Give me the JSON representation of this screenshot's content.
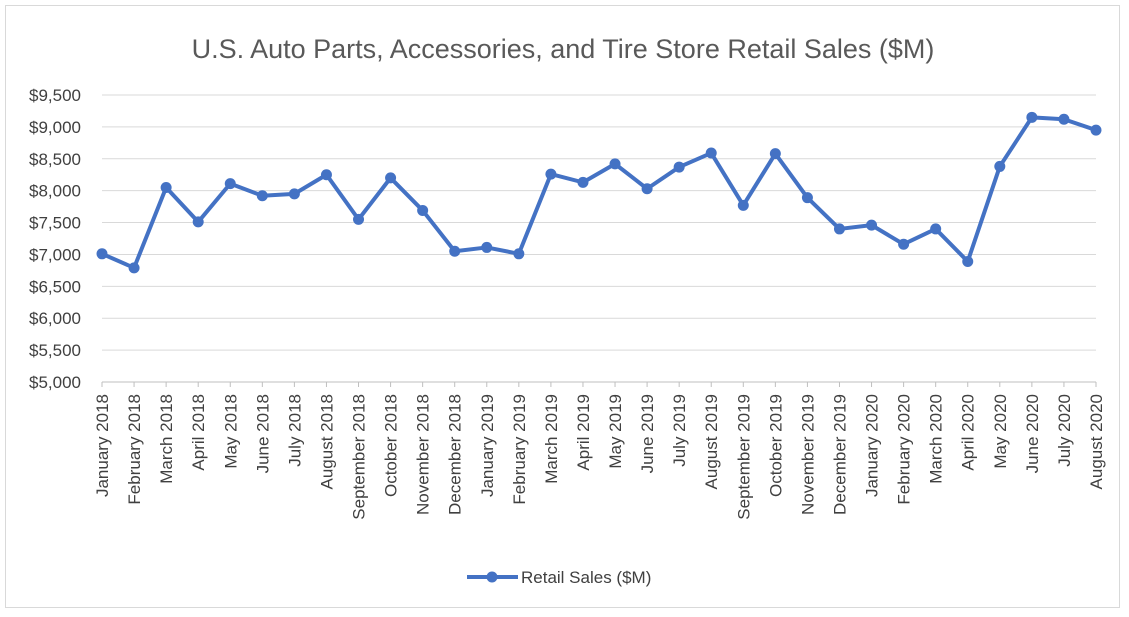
{
  "chart_data": {
    "type": "line",
    "title": "U.S. Auto Parts, Accessories, and Tire Store Retail Sales ($M)",
    "xlabel": "",
    "ylabel": "",
    "ylim": [
      5000,
      9500
    ],
    "ytick_step": 500,
    "ytick_labels": [
      "$5,000",
      "$5,500",
      "$6,000",
      "$6,500",
      "$7,000",
      "$7,500",
      "$8,000",
      "$8,500",
      "$9,000",
      "$9,500"
    ],
    "grid": true,
    "legend_position": "bottom",
    "categories": [
      "January 2018",
      "February 2018",
      "March 2018",
      "April 2018",
      "May 2018",
      "June 2018",
      "July 2018",
      "August 2018",
      "September 2018",
      "October 2018",
      "November 2018",
      "December 2018",
      "January 2019",
      "February 2019",
      "March 2019",
      "April 2019",
      "May 2019",
      "June 2019",
      "July 2019",
      "August 2019",
      "September 2019",
      "October 2019",
      "November 2019",
      "December 2019",
      "January 2020",
      "February 2020",
      "March 2020",
      "April 2020",
      "May 2020",
      "June 2020",
      "July 2020",
      "August 2020"
    ],
    "series": [
      {
        "name": "Retail Sales ($M)",
        "color": "#4472c4",
        "values": [
          7010,
          6790,
          8050,
          7510,
          8110,
          7920,
          7950,
          8250,
          7550,
          8200,
          7690,
          7050,
          7110,
          7010,
          8260,
          8130,
          8420,
          8030,
          8370,
          8590,
          7770,
          8580,
          7890,
          7400,
          7460,
          7160,
          7400,
          6890,
          8380,
          9150,
          9120,
          8950
        ]
      }
    ]
  }
}
